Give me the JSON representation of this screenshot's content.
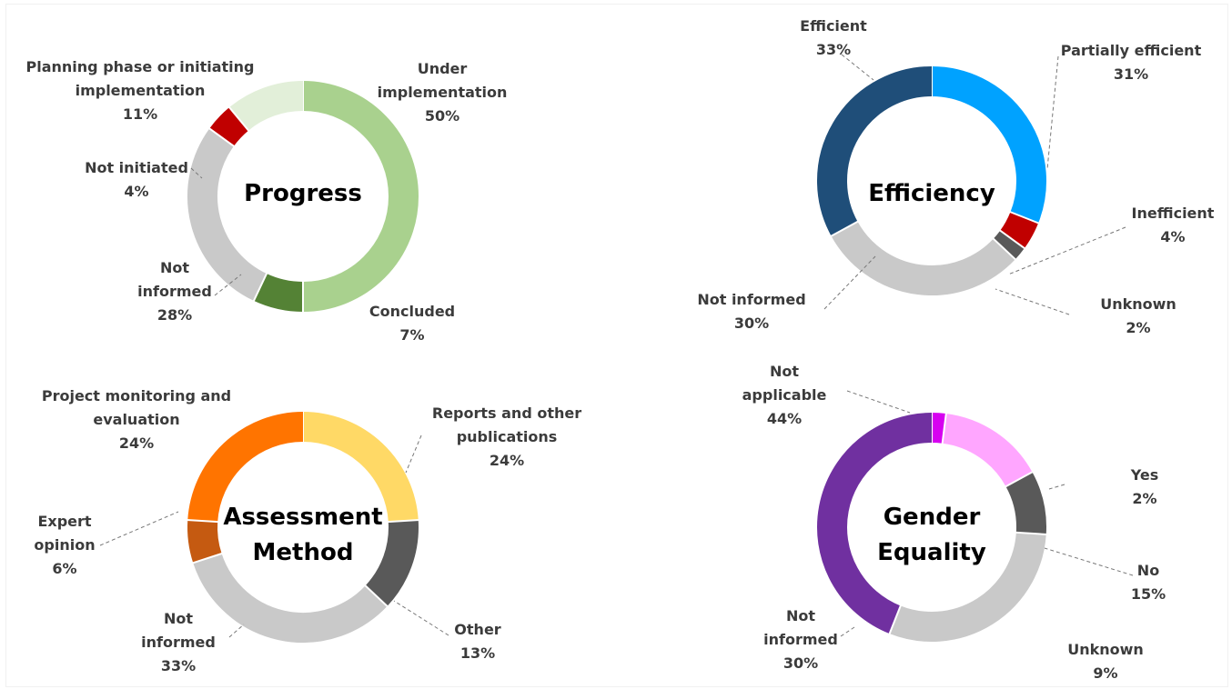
{
  "chart_data": [
    {
      "type": "pie",
      "title": "Progress",
      "slices": [
        {
          "label": [
            "Under",
            "implementation"
          ],
          "value": 50,
          "pct": "50%",
          "color": "#a9d18e"
        },
        {
          "label": [
            "Concluded"
          ],
          "value": 7,
          "pct": "7%",
          "color": "#548235"
        },
        {
          "label": [
            "Not",
            "informed"
          ],
          "value": 28,
          "pct": "28%",
          "color": "#c9c9c9"
        },
        {
          "label": [
            "Not initiated"
          ],
          "value": 4,
          "pct": "4%",
          "color": "#c00000"
        },
        {
          "label": [
            "Planning phase or initiating",
            "implementation"
          ],
          "value": 11,
          "pct": "11%",
          "color": "#e2efd9"
        }
      ]
    },
    {
      "type": "pie",
      "title": "Efficiency",
      "slices": [
        {
          "label": [
            "Partially efficient"
          ],
          "value": 31,
          "pct": "31%",
          "color": "#00a2ff"
        },
        {
          "label": [
            "Inefficient"
          ],
          "value": 4,
          "pct": "4%",
          "color": "#c00000"
        },
        {
          "label": [
            "Unknown"
          ],
          "value": 2,
          "pct": "2%",
          "color": "#595959"
        },
        {
          "label": [
            "Not informed"
          ],
          "value": 30,
          "pct": "30%",
          "color": "#c9c9c9"
        },
        {
          "label": [
            "Efficient"
          ],
          "value": 33,
          "pct": "33%",
          "color": "#1f4e79"
        }
      ]
    },
    {
      "type": "pie",
      "title": [
        "Assessment",
        "Method"
      ],
      "slices": [
        {
          "label": [
            "Reports and other",
            "publications"
          ],
          "value": 24,
          "pct": "24%",
          "color": "#ffd966"
        },
        {
          "label": [
            "Other"
          ],
          "value": 13,
          "pct": "13%",
          "color": "#595959"
        },
        {
          "label": [
            "Not",
            "informed"
          ],
          "value": 33,
          "pct": "33%",
          "color": "#c9c9c9"
        },
        {
          "label": [
            "Expert",
            "opinion"
          ],
          "value": 6,
          "pct": "6%",
          "color": "#c55a11"
        },
        {
          "label": [
            "Project monitoring and",
            "evaluation"
          ],
          "value": 24,
          "pct": "24%",
          "color": "#ff7400"
        }
      ]
    },
    {
      "type": "pie",
      "title": [
        "Gender",
        "Equality"
      ],
      "slices": [
        {
          "label": [
            "Yes"
          ],
          "value": 2,
          "pct": "2%",
          "color": "#d600f0"
        },
        {
          "label": [
            "No"
          ],
          "value": 15,
          "pct": "15%",
          "color": "#ffa6ff"
        },
        {
          "label": [
            "Unknown"
          ],
          "value": 9,
          "pct": "9%",
          "color": "#595959"
        },
        {
          "label": [
            "Not",
            "informed"
          ],
          "value": 30,
          "pct": "30%",
          "color": "#c9c9c9"
        },
        {
          "label": [
            "Not",
            "applicable"
          ],
          "value": 44,
          "pct": "44%",
          "color": "#7030a0"
        }
      ]
    }
  ]
}
